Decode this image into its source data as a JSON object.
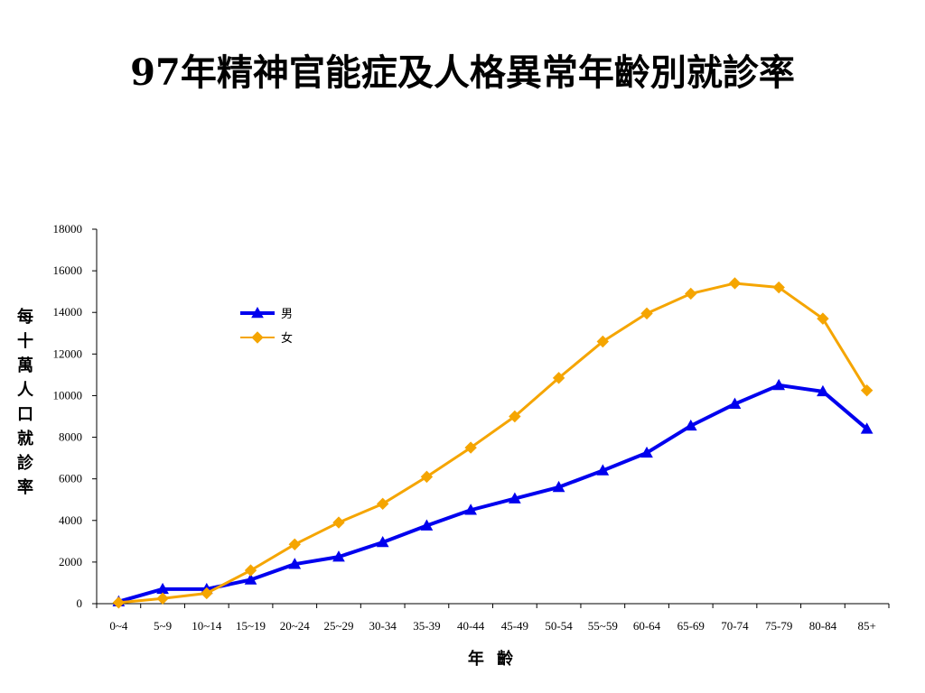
{
  "title": "97年精神官能症及人格異常年齡別就診率",
  "chart_data": {
    "type": "line",
    "title": "97年精神官能症及人格異常年齡別就診率",
    "xlabel": "年 齡",
    "ylabel": "每十萬人口就診率",
    "categories": [
      "0~4",
      "5~9",
      "10~14",
      "15~19",
      "20~24",
      "25~29",
      "30-34",
      "35-39",
      "40-44",
      "45-49",
      "50-54",
      "55~59",
      "60-64",
      "65-69",
      "70-74",
      "75-79",
      "80-84",
      "85+"
    ],
    "ylim": [
      0,
      18000
    ],
    "yticks": [
      0,
      2000,
      4000,
      6000,
      8000,
      10000,
      12000,
      14000,
      16000,
      18000
    ],
    "grid": false,
    "legend_position": "upper-left",
    "series": [
      {
        "name": "男",
        "color": "#0000ee",
        "marker": "triangle",
        "values": [
          100,
          700,
          700,
          1150,
          1900,
          2250,
          2950,
          3750,
          4500,
          5050,
          5600,
          6400,
          7250,
          8550,
          9600,
          10500,
          10200,
          8400
        ]
      },
      {
        "name": "女",
        "color": "#f5a500",
        "marker": "diamond",
        "values": [
          50,
          250,
          500,
          1600,
          2850,
          3900,
          4800,
          6100,
          7500,
          9000,
          10850,
          12600,
          13950,
          14900,
          15400,
          15200,
          13700,
          10250
        ]
      }
    ]
  }
}
